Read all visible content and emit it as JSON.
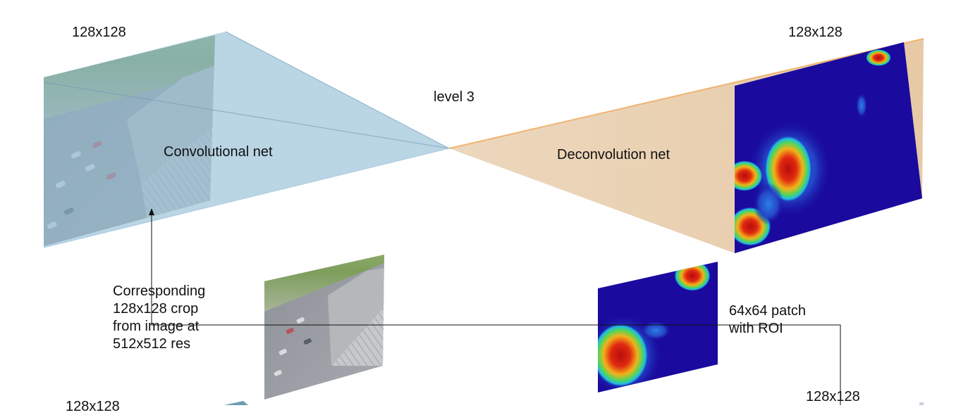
{
  "labels": {
    "input_size_top": "128x128",
    "output_size_top": "128x128",
    "level": "level 3",
    "conv_net": "Convolutional net",
    "deconv_net": "Deconvolution net",
    "crop_note": "Corresponding\n128x128 crop\nfrom image at\n512x512 res",
    "patch_note": "64x64 patch\n with ROI",
    "output_size_bottom": "128x128",
    "input_size_bottom": "128x128"
  },
  "colors": {
    "conv_fill": "#8fbcd4",
    "deconv_fill": "#ead3b6",
    "heatmap_background": "#1a0a9e",
    "heatmap_hot": "#d01010",
    "connector_line": "#111111"
  }
}
